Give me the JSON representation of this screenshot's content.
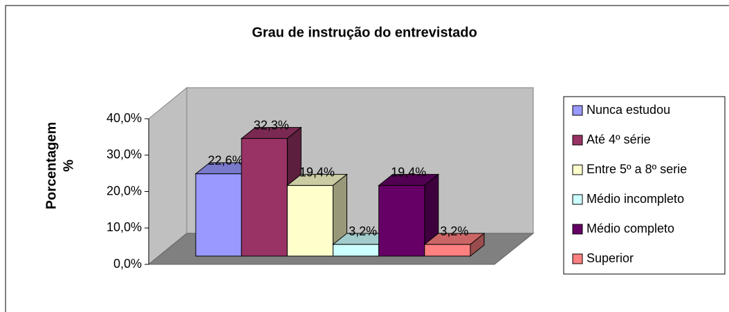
{
  "chart_data": {
    "type": "bar3d",
    "title": "Grau de instrução do entrevistado",
    "ylabel": [
      "Porcentagem",
      "%"
    ],
    "ylim": [
      0,
      40
    ],
    "yticks": [
      {
        "value": 0,
        "label": "0,0%"
      },
      {
        "value": 10,
        "label": "10,0%"
      },
      {
        "value": 20,
        "label": "20,0%"
      },
      {
        "value": 30,
        "label": "30,0%"
      },
      {
        "value": 40,
        "label": "40,0%"
      }
    ],
    "legend": "right",
    "series": [
      {
        "name": "Nunca estudou",
        "color": "#9999ff",
        "values": [
          22.6
        ],
        "value_labels": [
          "22,6%"
        ]
      },
      {
        "name": "Até 4º série",
        "color": "#993366",
        "values": [
          32.3
        ],
        "value_labels": [
          "32,3%"
        ]
      },
      {
        "name": "Entre 5º a 8º serie",
        "color": "#ffffcc",
        "values": [
          19.4
        ],
        "value_labels": [
          "19,4%"
        ]
      },
      {
        "name": "Médio incompleto",
        "color": "#ccffff",
        "values": [
          3.2
        ],
        "value_labels": [
          "3,2%"
        ]
      },
      {
        "name": "Médio completo",
        "color": "#660066",
        "values": [
          19.4
        ],
        "value_labels": [
          "19,4%"
        ]
      },
      {
        "name": "Superior",
        "color": "#ff8080",
        "values": [
          3.2
        ],
        "value_labels": [
          "3,2%"
        ]
      }
    ]
  }
}
